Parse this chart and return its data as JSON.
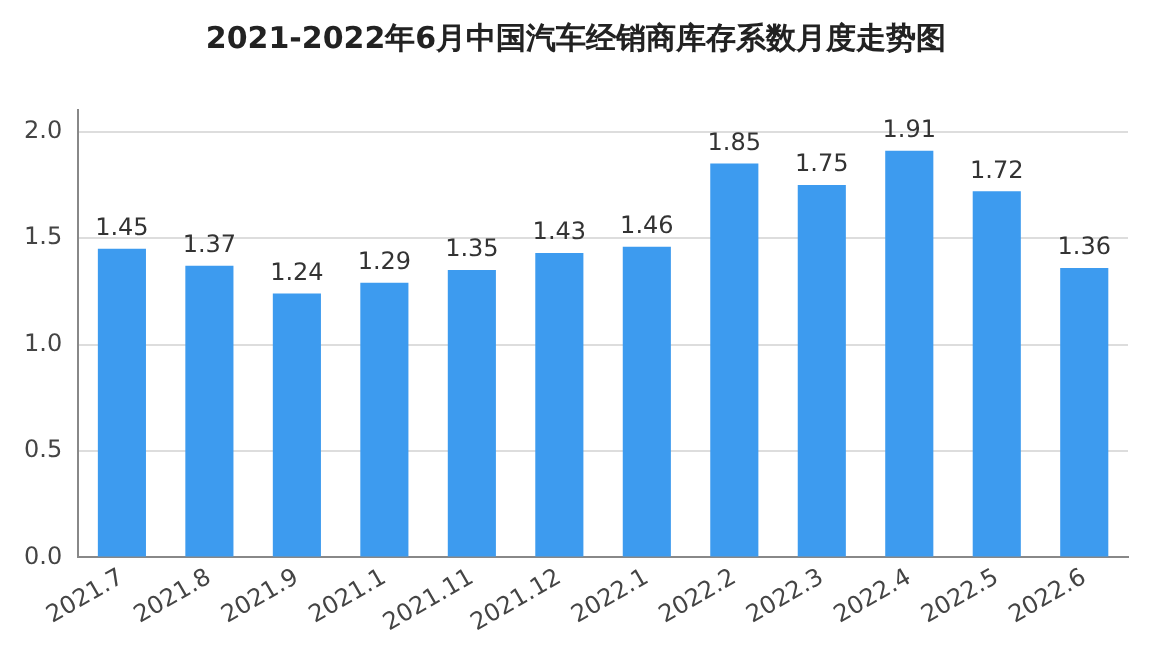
{
  "chart_data": {
    "type": "bar",
    "title": "2021-2022年6月中国汽车经销商库存系数月度走势图",
    "categories": [
      "2021.7",
      "2021.8",
      "2021.9",
      "2021.1",
      "2021.11",
      "2021.12",
      "2022.1",
      "2022.2",
      "2022.3",
      "2022.4",
      "2022.5",
      "2022.6"
    ],
    "values": [
      1.45,
      1.37,
      1.24,
      1.29,
      1.35,
      1.43,
      1.46,
      1.85,
      1.75,
      1.91,
      1.72,
      1.36
    ],
    "color": "#3d9bef",
    "ylim": [
      0,
      2.1
    ],
    "yticks": [
      {
        "value": 0,
        "label": "0.0"
      },
      {
        "value": 0.5,
        "label": "0.5"
      },
      {
        "value": 1,
        "label": "1.0"
      },
      {
        "value": 1.5,
        "label": "1.5"
      },
      {
        "value": 2,
        "label": "2.0"
      }
    ],
    "grid": "y",
    "data_labels": true,
    "legend": false
  }
}
